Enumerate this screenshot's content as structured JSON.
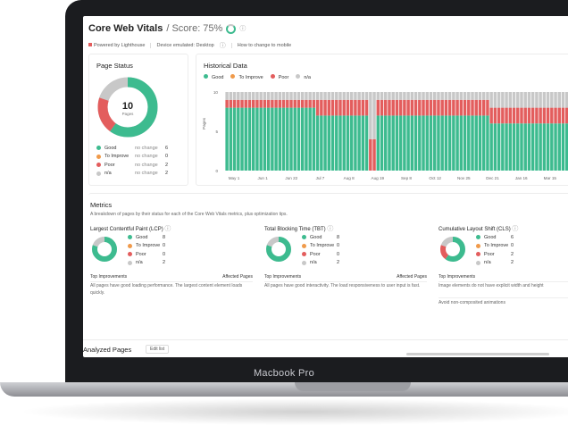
{
  "header": {
    "title": "Core Web Vitals",
    "score": "/ Score: 75%"
  },
  "subbar": {
    "powered": "Powered by Lighthouse",
    "device": "Device emulated: Desktop",
    "link": "How to change to mobile"
  },
  "page_status": {
    "title": "Page Status",
    "total": "10",
    "total_label": "Pages",
    "rows": [
      {
        "label": "Good",
        "note": "no change",
        "count": "6",
        "color": "#3dbb8f"
      },
      {
        "label": "To Improve",
        "note": "no change",
        "count": "0",
        "color": "#f09a4a"
      },
      {
        "label": "Poor",
        "note": "no change",
        "count": "2",
        "color": "#e35d5d"
      },
      {
        "label": "n/a",
        "note": "no change",
        "count": "2",
        "color": "#c8c8c8"
      }
    ]
  },
  "historical": {
    "title": "Historical Data",
    "legend": [
      {
        "label": "Good",
        "color": "#3dbb8f"
      },
      {
        "label": "To Improve",
        "color": "#f09a4a"
      },
      {
        "label": "Poor",
        "color": "#e35d5d"
      },
      {
        "label": "n/a",
        "color": "#c8c8c8"
      }
    ],
    "y_label": "Pages",
    "y_ticks": [
      "10",
      "5",
      "0"
    ],
    "x_ticks": [
      "May 1",
      "Jun 1",
      "Jun 22",
      "Jul 7",
      "Aug 8",
      "Aug 19",
      "Sep 8",
      "Oct 12",
      "Nov 25",
      "Dec 21",
      "Jan 16",
      "Mar 15",
      "Apr 17"
    ]
  },
  "chart_data": {
    "type": "bar",
    "stacked": true,
    "ylim": [
      0,
      10
    ],
    "ylabel": "Pages",
    "series_names": [
      "Good",
      "To Improve",
      "Poor",
      "n/a"
    ],
    "segments": [
      {
        "from": "May 1",
        "good": 8,
        "poor": 1,
        "na": 1
      },
      {
        "from": "Jul 7",
        "good": 7,
        "poor": 2,
        "na": 1
      },
      {
        "from": "Aug 19",
        "good": 7,
        "poor": 2,
        "na": 1
      },
      {
        "from": "Jan 16",
        "good": 6,
        "poor": 2,
        "na": 2
      }
    ]
  },
  "metrics": {
    "title": "Metrics",
    "desc": "A breakdown of pages by their status for each of the Core Web Vitals metrics, plus optimization tips.",
    "items": [
      {
        "title": "Largest Contentful Paint (LCP)",
        "rows": [
          {
            "label": "Good",
            "count": "8"
          },
          {
            "label": "To Improve",
            "count": "0"
          },
          {
            "label": "Poor",
            "count": "0"
          },
          {
            "label": "n/a",
            "count": "2"
          }
        ],
        "imp_label": "Top Improvements",
        "aff_label": "Affected Pages",
        "text": "All pages have good loading performance. The largest content element loads quickly."
      },
      {
        "title": "Total Blocking Time (TBT)",
        "rows": [
          {
            "label": "Good",
            "count": "8"
          },
          {
            "label": "To Improve",
            "count": "0"
          },
          {
            "label": "Poor",
            "count": "0"
          },
          {
            "label": "n/a",
            "count": "2"
          }
        ],
        "imp_label": "Top Improvements",
        "aff_label": "Affected Pages",
        "text": "All pages have good interactivity. The load responsiveness to user input is fast."
      },
      {
        "title": "Cumulative Layout Shift (CLS)",
        "rows": [
          {
            "label": "Good",
            "count": "6"
          },
          {
            "label": "To Improve",
            "count": "0"
          },
          {
            "label": "Poor",
            "count": "2"
          },
          {
            "label": "n/a",
            "count": "2"
          }
        ],
        "imp_label": "Top Improvements",
        "aff_label": "",
        "text": "Image elements do not have explicit width and height",
        "text2": "Avoid non-composited animations"
      }
    ]
  },
  "analyzed": {
    "title": "Analyzed Pages",
    "edit": "Edit list"
  },
  "laptop_label": "Macbook Pro"
}
